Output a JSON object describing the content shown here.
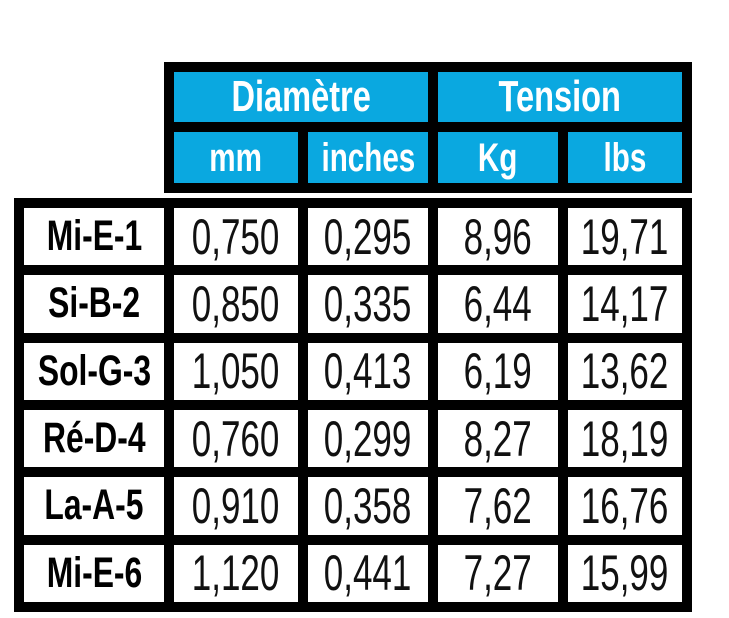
{
  "colors": {
    "accent_cyan": "#0aa8e0",
    "grid_black": "#000000",
    "cell_white": "#ffffff",
    "header_text": "#ffffff",
    "body_text": "#111111"
  },
  "table": {
    "group_headers": [
      {
        "label": "Diamètre",
        "span": 2
      },
      {
        "label": "Tension",
        "span": 2
      }
    ],
    "sub_headers": [
      "mm",
      "inches",
      "Kg",
      "lbs"
    ],
    "rows": [
      {
        "name": "Mi-E-1",
        "cells": [
          "0,750",
          "0,295",
          "8,96",
          "19,71"
        ]
      },
      {
        "name": "Si-B-2",
        "cells": [
          "0,850",
          "0,335",
          "6,44",
          "14,17"
        ]
      },
      {
        "name": "Sol-G-3",
        "cells": [
          "1,050",
          "0,413",
          "6,19",
          "13,62"
        ]
      },
      {
        "name": "Ré-D-4",
        "cells": [
          "0,760",
          "0,299",
          "8,27",
          "18,19"
        ]
      },
      {
        "name": "La-A-5",
        "cells": [
          "0,910",
          "0,358",
          "7,62",
          "16,76"
        ]
      },
      {
        "name": "Mi-E-6",
        "cells": [
          "1,120",
          "0,441",
          "7,27",
          "15,99"
        ]
      }
    ]
  },
  "chart_data": {
    "type": "table",
    "title": "",
    "decimal_separator": ",",
    "column_groups": [
      {
        "label": "Diamètre",
        "columns": [
          "mm",
          "inches"
        ]
      },
      {
        "label": "Tension",
        "columns": [
          "Kg",
          "lbs"
        ]
      }
    ],
    "row_labels": [
      "Mi-E-1",
      "Si-B-2",
      "Sol-G-3",
      "Ré-D-4",
      "La-A-5",
      "Mi-E-6"
    ],
    "rows": [
      [
        0.75,
        0.295,
        8.96,
        19.71
      ],
      [
        0.85,
        0.335,
        6.44,
        14.17
      ],
      [
        1.05,
        0.413,
        6.19,
        13.62
      ],
      [
        0.76,
        0.299,
        8.27,
        18.19
      ],
      [
        0.91,
        0.358,
        7.62,
        16.76
      ],
      [
        1.12,
        0.441,
        7.27,
        15.99
      ]
    ]
  }
}
